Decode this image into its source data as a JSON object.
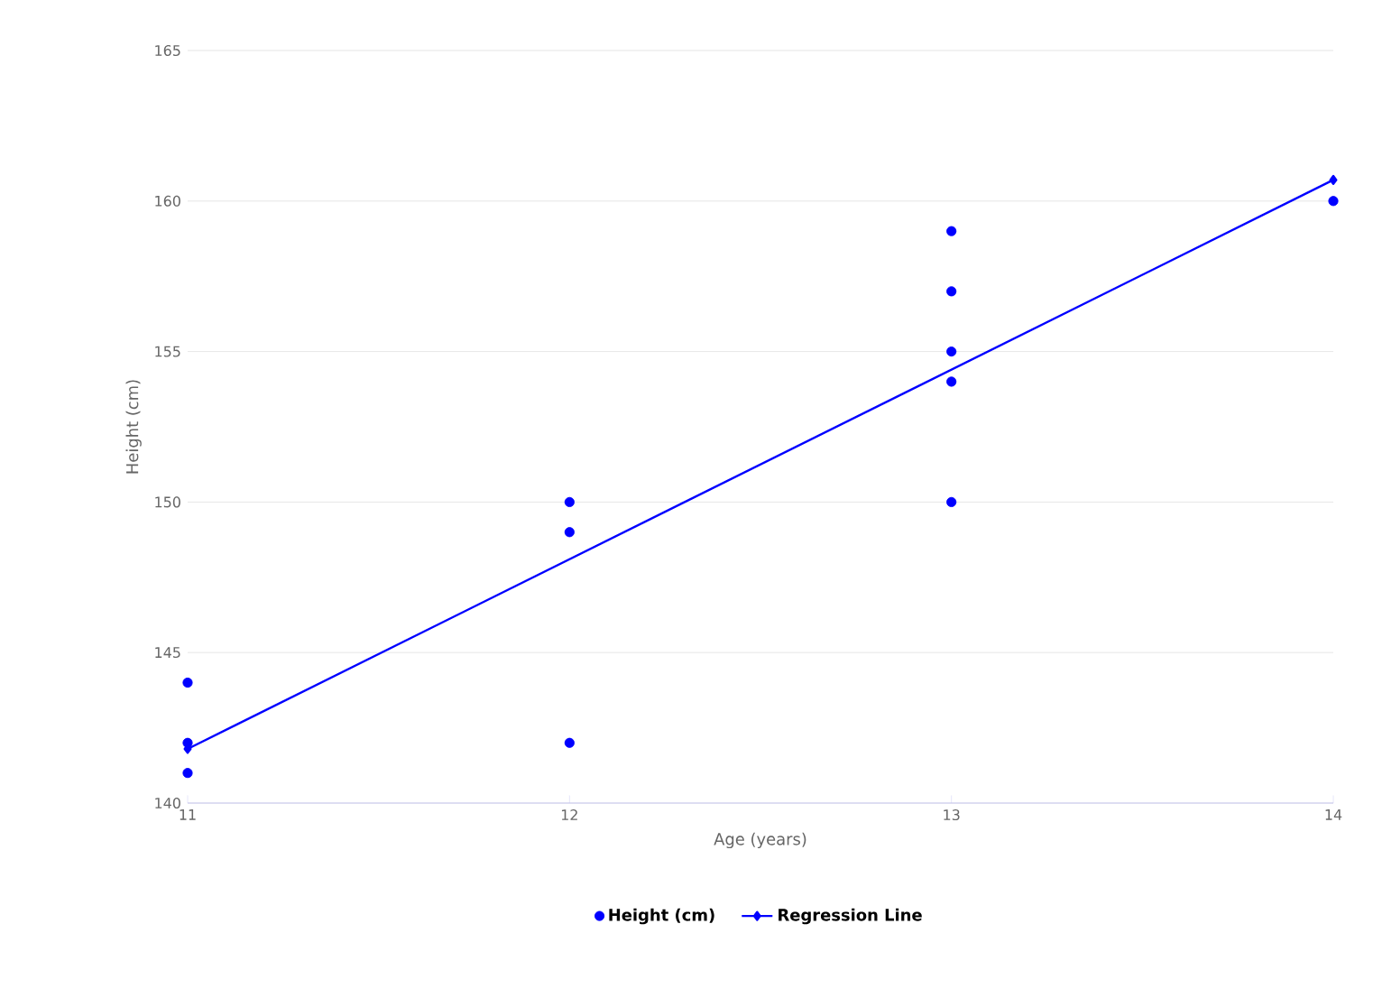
{
  "chart_data": {
    "type": "scatter",
    "xlabel": "Age (years)",
    "ylabel": "Height (cm)",
    "xlim": [
      11,
      14
    ],
    "xticks": [
      11,
      12,
      13,
      14
    ],
    "ylim": [
      140,
      165
    ],
    "yticks": [
      140,
      145,
      150,
      155,
      160,
      165
    ],
    "grid": "y",
    "legend": "bottom",
    "series": [
      {
        "name": "Height (cm)",
        "color": "#0000ff",
        "marker": "circle",
        "x": [
          11,
          11,
          11,
          12,
          12,
          12,
          13,
          13,
          13,
          13,
          13,
          14
        ],
        "values": [
          144,
          142,
          141,
          150,
          149,
          142,
          159,
          157,
          155,
          154,
          150,
          160
        ]
      },
      {
        "name": "Regression Line",
        "type": "line",
        "color": "#0000ff",
        "marker": "diamond",
        "x": [
          11,
          14
        ],
        "values": [
          141.8,
          160.7
        ]
      }
    ]
  }
}
